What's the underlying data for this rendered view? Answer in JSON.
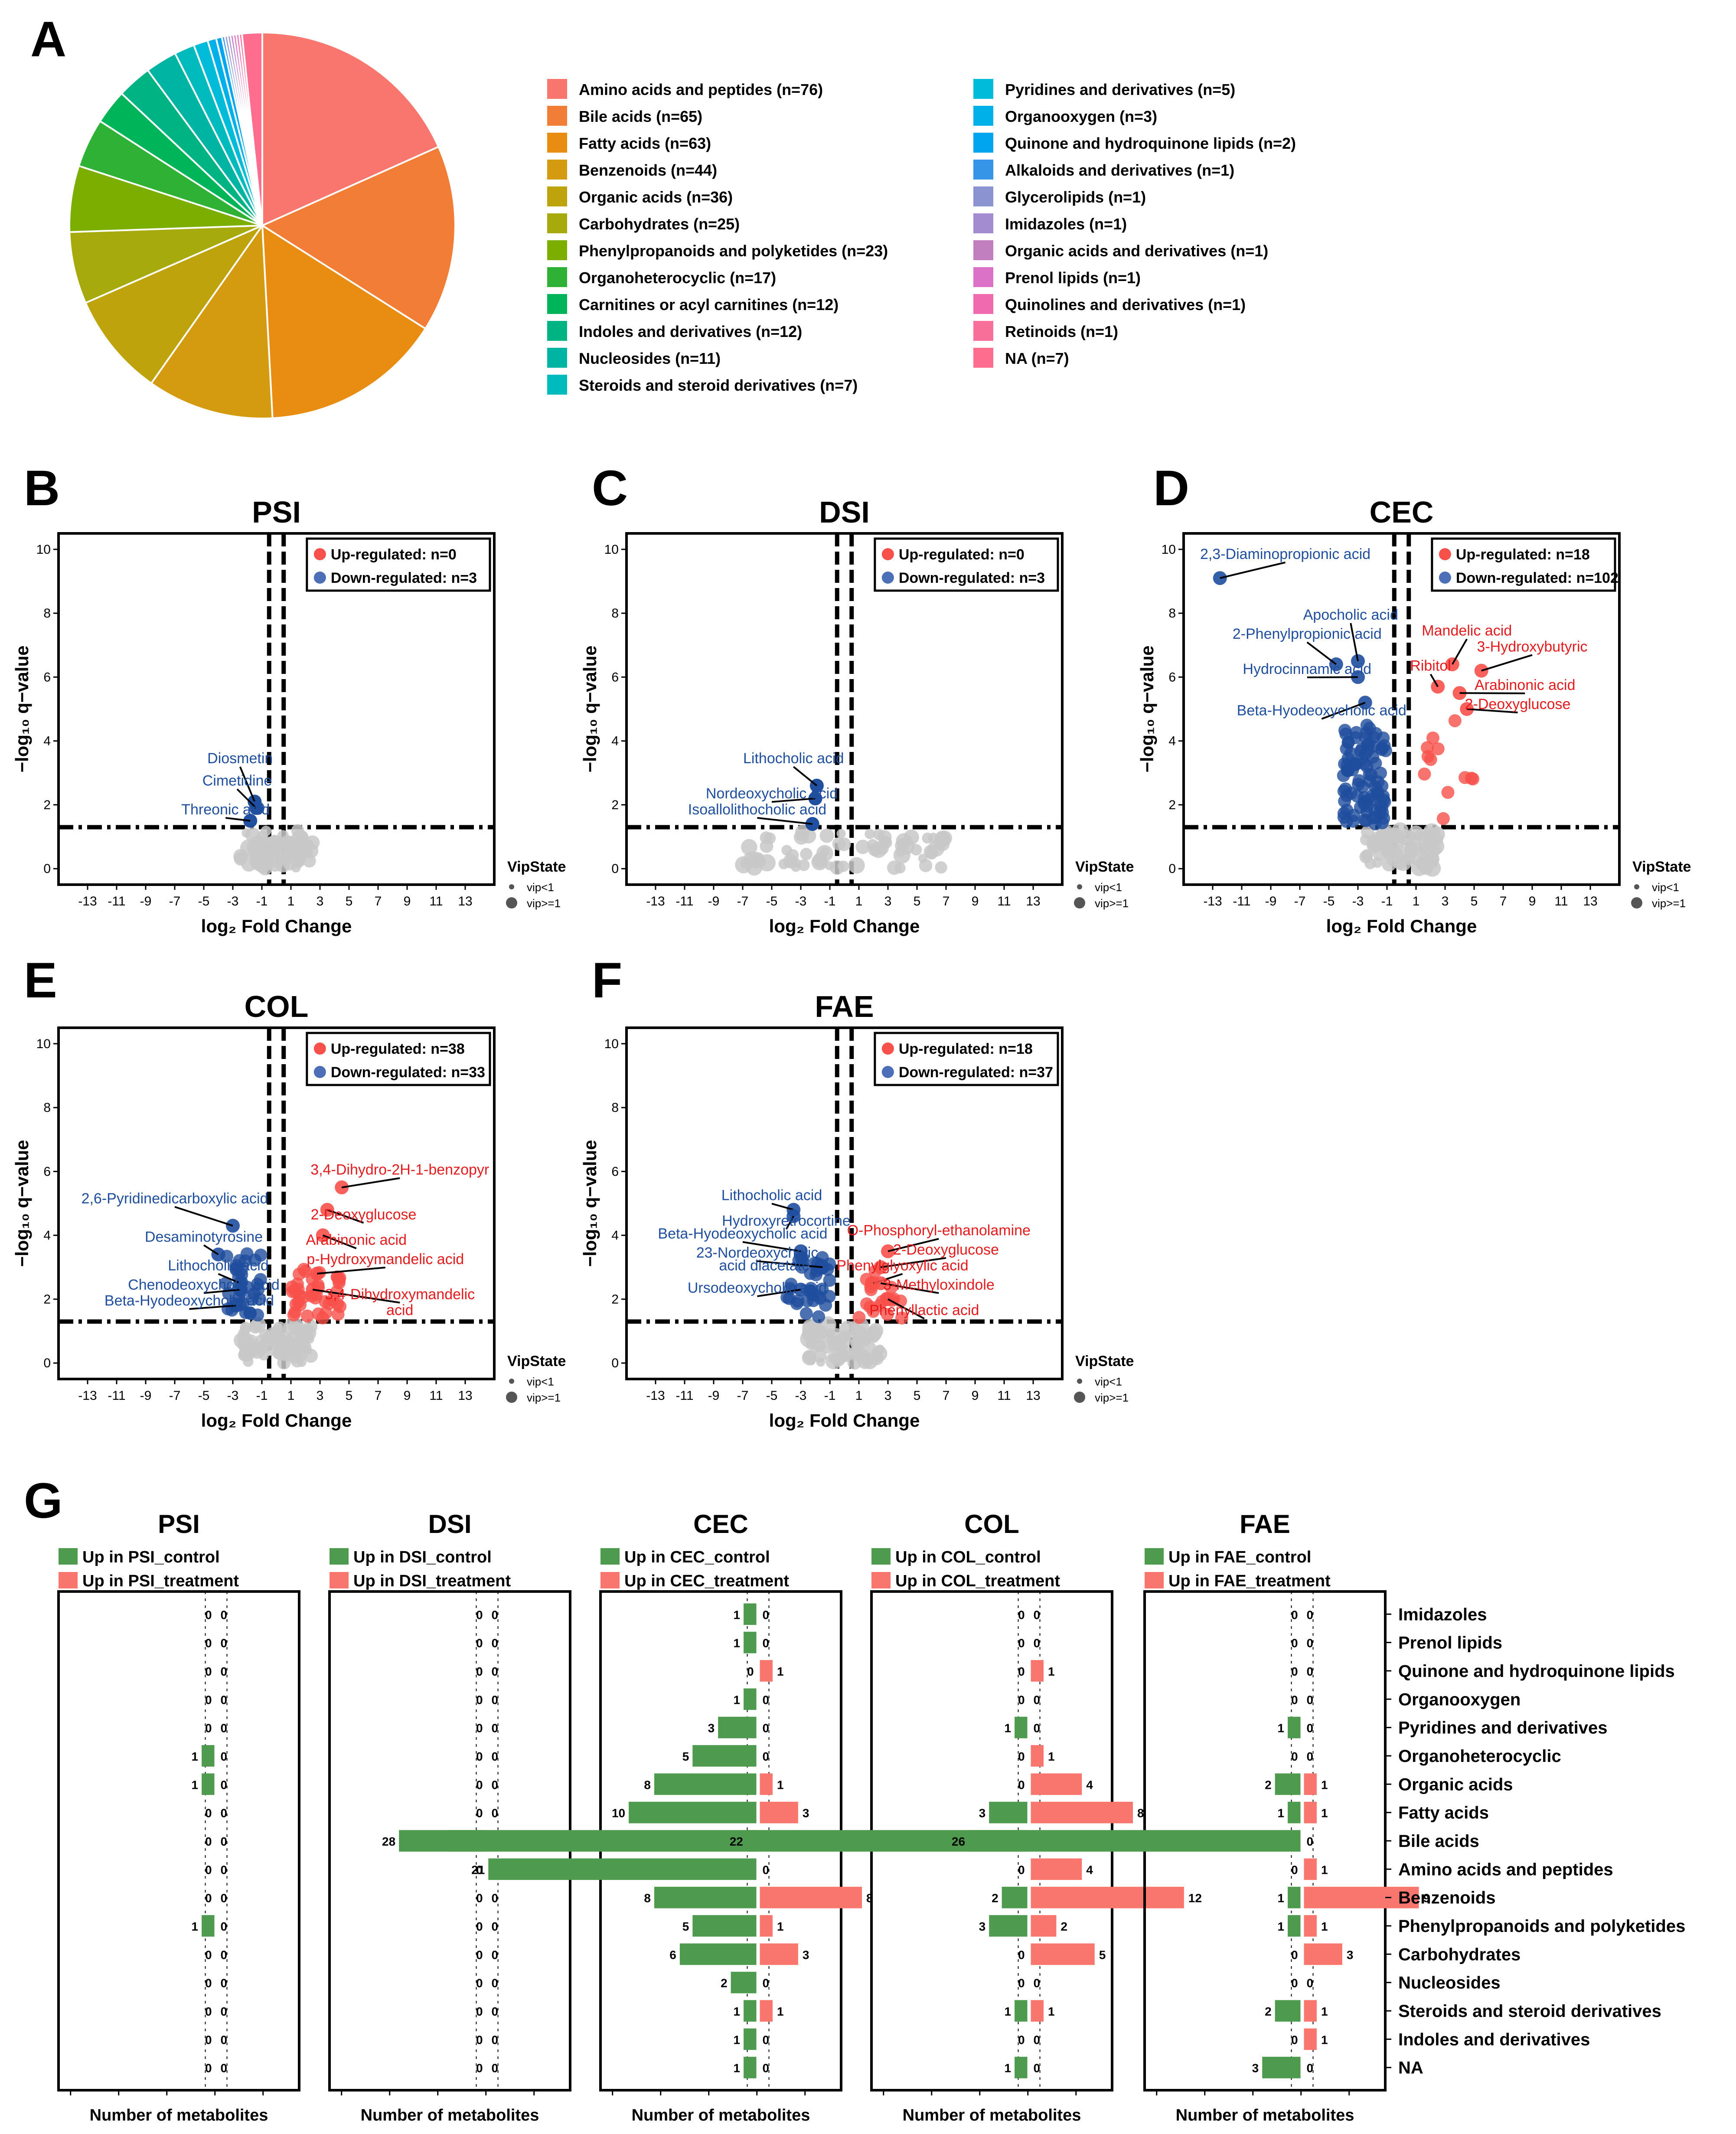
{
  "figure": {
    "panel_letters": [
      "A",
      "B",
      "C",
      "D",
      "E",
      "F",
      "G"
    ]
  },
  "chart_data": [
    {
      "id": "A",
      "type": "pie",
      "title": "",
      "slices": [
        {
          "label": "Amino acids and peptides (n=76)",
          "value": 76,
          "color": "#F8766D"
        },
        {
          "label": "Bile acids (n=65)",
          "value": 65,
          "color": "#F27D36"
        },
        {
          "label": "Fatty acids (n=63)",
          "value": 63,
          "color": "#E88D12"
        },
        {
          "label": "Benzenoids (n=44)",
          "value": 44,
          "color": "#D49B10"
        },
        {
          "label": "Organic acids (n=36)",
          "value": 36,
          "color": "#BFA30C"
        },
        {
          "label": "Carbohydrates (n=25)",
          "value": 25,
          "color": "#A6AA0C"
        },
        {
          "label": "Phenylpropanoids and polyketides (n=23)",
          "value": 23,
          "color": "#7CAE00"
        },
        {
          "label": "Organoheterocyclic (n=17)",
          "value": 17,
          "color": "#2EB134"
        },
        {
          "label": "Carnitines or acyl carnitines (n=12)",
          "value": 12,
          "color": "#00B45A"
        },
        {
          "label": "Indoles and derivatives (n=12)",
          "value": 12,
          "color": "#00B383"
        },
        {
          "label": "Nucleosides (n=11)",
          "value": 11,
          "color": "#00B4A3"
        },
        {
          "label": "Steroids and steroid derivatives (n=7)",
          "value": 7,
          "color": "#00BBBD"
        },
        {
          "label": "Pyridines and derivatives (n=5)",
          "value": 5,
          "color": "#00BCD8"
        },
        {
          "label": "Organooxygen (n=3)",
          "value": 3,
          "color": "#00B0E8"
        },
        {
          "label": "Quinone and hydroquinone lipids (n=2)",
          "value": 2,
          "color": "#00A5F0"
        },
        {
          "label": "Alkaloids and derivatives (n=1)",
          "value": 1,
          "color": "#3795E8"
        },
        {
          "label": "Glycerolipids (n=1)",
          "value": 1,
          "color": "#8B93D0"
        },
        {
          "label": "Imidazoles (n=1)",
          "value": 1,
          "color": "#A38CD0"
        },
        {
          "label": "Organic acids and derivatives (n=1)",
          "value": 1,
          "color": "#C27FC0"
        },
        {
          "label": "Prenol lipids (n=1)",
          "value": 1,
          "color": "#DB72C8"
        },
        {
          "label": "Quinolines and derivatives (n=1)",
          "value": 1,
          "color": "#F06AB0"
        },
        {
          "label": "Retinoids (n=1)",
          "value": 1,
          "color": "#F8709A"
        },
        {
          "label": "NA (n=7)",
          "value": 7,
          "color": "#FF6D8E"
        }
      ]
    },
    {
      "id": "volcano",
      "type": "scatter",
      "xlabel": "log₂ Fold Change",
      "ylabel": "−log₁₀ q−value",
      "xlim": [
        -15,
        15
      ],
      "ylim": [
        -0.5,
        10.5
      ],
      "xticks": [
        -13,
        -11,
        -9,
        -7,
        -5,
        -3,
        -1,
        1,
        3,
        5,
        7,
        9,
        11,
        13
      ],
      "yticks": [
        0,
        2,
        4,
        6,
        8,
        10
      ],
      "vline": [
        -0.5,
        0.5
      ],
      "hline": 1.3,
      "vip_legend": {
        "title": "VipState",
        "items": [
          "vip<1",
          "vip>=1"
        ]
      },
      "colors": {
        "up": "#F8504A",
        "down": "#1F4E9E",
        "ns": "#C8C8C8",
        "up_label": "#E41A1C",
        "down_label": "#1F4E9E"
      },
      "panels": [
        {
          "id": "B",
          "title": "PSI",
          "legend_up": "Up-regulated: n=0",
          "legend_down": "Down-regulated: n=3",
          "labels": [
            {
              "text": "Diosmetin",
              "x": -2.5,
              "y": 3.3,
              "color": "down",
              "px": -1.5,
              "py": 2.1
            },
            {
              "text": "Cimetidine",
              "x": -2.7,
              "y": 2.6,
              "color": "down",
              "px": -1.4,
              "py": 1.9
            },
            {
              "text": "Threonic acid",
              "x": -3.5,
              "y": 1.7,
              "color": "down",
              "px": -1.8,
              "py": 1.5
            }
          ],
          "down_points": [
            [
              -1.5,
              2.1
            ],
            [
              -1.3,
              1.9
            ],
            [
              -1.8,
              1.5
            ]
          ],
          "up_points": []
        },
        {
          "id": "C",
          "title": "DSI",
          "legend_up": "Up-regulated: n=0",
          "legend_down": "Down-regulated: n=3",
          "labels": [
            {
              "text": "Lithocholic acid",
              "x": -3.5,
              "y": 3.3,
              "color": "down",
              "px": -1.9,
              "py": 2.6
            },
            {
              "text": "Nordeoxycholic acid",
              "x": -5.0,
              "y": 2.2,
              "color": "down",
              "px": -2.0,
              "py": 2.2
            },
            {
              "text": "Isoallolithocholic acid",
              "x": -6.0,
              "y": 1.7,
              "color": "down",
              "px": -2.2,
              "py": 1.4
            }
          ],
          "down_points": [
            [
              -1.9,
              2.6
            ],
            [
              -2.0,
              2.2
            ],
            [
              -2.2,
              1.4
            ]
          ],
          "up_points": []
        },
        {
          "id": "D",
          "title": "CEC",
          "legend_up": "Up-regulated: n=18",
          "legend_down": "Down-regulated: n=102",
          "labels": [
            {
              "text": "2,3-Diaminopropionic acid",
              "x": -8.0,
              "y": 9.7,
              "color": "down",
              "px": -12.5,
              "py": 9.1
            },
            {
              "text": "Apocholic acid",
              "x": -3.5,
              "y": 7.8,
              "color": "down",
              "px": -3.0,
              "py": 6.5
            },
            {
              "text": "2-Phenylpropionic acid",
              "x": -6.5,
              "y": 7.2,
              "color": "down",
              "px": -4.5,
              "py": 6.4
            },
            {
              "text": "Hydrocinnamic acid",
              "x": -6.5,
              "y": 6.1,
              "color": "down",
              "px": -3.0,
              "py": 6.0
            },
            {
              "text": "Beta-Hyodeoxycholic acid",
              "x": -5.5,
              "y": 4.8,
              "color": "down",
              "px": -2.5,
              "py": 5.2
            },
            {
              "text": "Mandelic acid",
              "x": 4.5,
              "y": 7.3,
              "color": "up",
              "px": 3.5,
              "py": 6.4
            },
            {
              "text": "3-Hydroxybutyric",
              "x": 9.0,
              "y": 6.8,
              "color": "up",
              "px": 5.5,
              "py": 6.2
            },
            {
              "text": "Ribitol",
              "x": 2.0,
              "y": 6.2,
              "color": "up",
              "px": 2.5,
              "py": 5.7
            },
            {
              "text": "Arabinonic acid",
              "x": 8.5,
              "y": 5.6,
              "color": "up",
              "px": 4.0,
              "py": 5.5
            },
            {
              "text": "2-Deoxyglucose",
              "x": 8.0,
              "y": 5.0,
              "color": "up",
              "px": 4.5,
              "py": 5.0
            }
          ],
          "down_points": [],
          "up_points": [],
          "dense_down": {
            "count": 90,
            "xmin": -4,
            "xmax": -1,
            "ymin": 1.4,
            "ymax": 4.6
          },
          "dense_up": {
            "count": 12,
            "xmin": 1,
            "xmax": 5,
            "ymin": 1.4,
            "ymax": 5.0
          }
        },
        {
          "id": "E",
          "title": "COL",
          "legend_up": "Up-regulated: n=38",
          "legend_down": "Down-regulated: n=33",
          "labels": [
            {
              "text": "3,4-Dihydro-2H-1-benzopyr",
              "x": 8.5,
              "y": 5.9,
              "color": "up",
              "px": 4.5,
              "py": 5.5
            },
            {
              "text": "2-Deoxyglucose",
              "x": 6.0,
              "y": 4.5,
              "color": "up",
              "px": 3.5,
              "py": 4.8
            },
            {
              "text": "Arabinonic acid",
              "x": 5.5,
              "y": 3.7,
              "color": "up",
              "px": 3.2,
              "py": 4.0
            },
            {
              "text": "p-Hydroxymandelic acid",
              "x": 7.5,
              "y": 3.1,
              "color": "up",
              "px": 2.8,
              "py": 2.8
            },
            {
              "text": "3,4-Dihydroxymandelic",
              "x": 8.5,
              "y": 2.0,
              "color": "up",
              "px": 2.5,
              "py": 2.3
            },
            {
              "text": "acid",
              "x": 8.5,
              "y": 1.5,
              "color": "up",
              "px": null,
              "py": null
            },
            {
              "text": "2,6-Pyridinedicarboxylic acid",
              "x": -7.0,
              "y": 5.0,
              "color": "down",
              "px": -3.0,
              "py": 4.3
            },
            {
              "text": "Desaminotyrosine",
              "x": -5.0,
              "y": 3.8,
              "color": "down",
              "px": -4.0,
              "py": 3.4
            },
            {
              "text": "Lithocholic acid",
              "x": -4.0,
              "y": 2.9,
              "color": "down",
              "px": -2.5,
              "py": 2.5
            },
            {
              "text": "Chenodeoxycholic acid",
              "x": -5.0,
              "y": 2.3,
              "color": "down",
              "px": -2.5,
              "py": 2.3
            },
            {
              "text": "Beta-Hyodeoxycholic acid",
              "x": -6.0,
              "y": 1.8,
              "color": "down",
              "px": -2.8,
              "py": 1.8
            }
          ],
          "down_points": [],
          "up_points": [],
          "dense_down": {
            "count": 33,
            "xmin": -3.5,
            "xmax": -1,
            "ymin": 1.4,
            "ymax": 3.5
          },
          "dense_up": {
            "count": 38,
            "xmin": 1,
            "xmax": 4.5,
            "ymin": 1.4,
            "ymax": 3.0
          }
        },
        {
          "id": "F",
          "title": "FAE",
          "legend_up": "Up-regulated: n=18",
          "legend_down": "Down-regulated: n=37",
          "labels": [
            {
              "text": "Lithocholic acid",
              "x": -5.0,
              "y": 5.1,
              "color": "down",
              "px": -3.5,
              "py": 4.8
            },
            {
              "text": "Hydroxyretrocortine",
              "x": -4.0,
              "y": 4.3,
              "color": "down",
              "px": -3.5,
              "py": 4.6
            },
            {
              "text": "Beta-Hyodeoxycholic acid",
              "x": -7.0,
              "y": 3.9,
              "color": "down",
              "px": -3.0,
              "py": 3.5
            },
            {
              "text": "23-Nordeoxycholic",
              "x": -6.0,
              "y": 3.3,
              "color": "down",
              "px": -1.5,
              "py": 3.0
            },
            {
              "text": "acid diacetate",
              "x": -5.5,
              "y": 2.9,
              "color": "down",
              "px": null,
              "py": null
            },
            {
              "text": "Ursodeoxycholic acid",
              "x": -6.0,
              "y": 2.2,
              "color": "down",
              "px": -3.0,
              "py": 2.3
            },
            {
              "text": "O-Phosphoryl-ethanolamine",
              "x": 6.5,
              "y": 4.0,
              "color": "up",
              "px": 3.0,
              "py": 3.5
            },
            {
              "text": "2-Deoxyglucose",
              "x": 7.0,
              "y": 3.4,
              "color": "up",
              "px": 2.5,
              "py": 3.0
            },
            {
              "text": "Phenylglyoxylic acid",
              "x": 4.0,
              "y": 2.9,
              "color": "up",
              "px": 2.0,
              "py": 2.5
            },
            {
              "text": "3-Methyloxindole",
              "x": 6.5,
              "y": 2.3,
              "color": "up",
              "px": 2.5,
              "py": 2.5
            },
            {
              "text": "Phenyllactic acid",
              "x": 5.5,
              "y": 1.5,
              "color": "up",
              "px": 3.0,
              "py": 2.0
            }
          ],
          "down_points": [],
          "up_points": [],
          "dense_down": {
            "count": 37,
            "xmin": -4,
            "xmax": -1,
            "ymin": 1.4,
            "ymax": 3.5
          },
          "dense_up": {
            "count": 18,
            "xmin": 1,
            "xmax": 4,
            "ymin": 1.4,
            "ymax": 3.0
          }
        }
      ]
    },
    {
      "id": "G",
      "type": "bar",
      "orientation": "horizontal-diverging",
      "xlabel": "Number of metabolites",
      "categories": [
        "Imidazoles",
        "Prenol lipids",
        "Quinone and hydroquinone lipids",
        "Organooxygen",
        "Pyridines and derivatives",
        "Organoheterocyclic",
        "Organic acids",
        "Fatty acids",
        "Bile acids",
        "Amino acids and peptides",
        "Benzenoids",
        "Phenylpropanoids and polyketides",
        "Carbohydrates",
        "Nucleosides",
        "Steroids and steroid derivatives",
        "Indoles and derivatives",
        "NA"
      ],
      "colors": {
        "control": "#4E9A4E",
        "treatment": "#F8766D"
      },
      "panels": [
        {
          "title": "PSI",
          "legend_control": "Up in PSI_control",
          "legend_treatment": "Up in PSI_treatment",
          "control": [
            0,
            0,
            0,
            0,
            0,
            1,
            1,
            0,
            0,
            0,
            0,
            1,
            0,
            0,
            0,
            0,
            0
          ],
          "treatment": [
            0,
            0,
            0,
            0,
            0,
            0,
            0,
            0,
            0,
            0,
            0,
            0,
            0,
            0,
            0,
            0,
            0
          ]
        },
        {
          "title": "DSI",
          "legend_control": "Up in DSI_control",
          "legend_treatment": "Up in DSI_treatment",
          "control": [
            0,
            0,
            0,
            0,
            0,
            0,
            0,
            0,
            3,
            0,
            0,
            0,
            0,
            0,
            0,
            0,
            0
          ],
          "treatment": [
            0,
            0,
            0,
            0,
            0,
            0,
            0,
            0,
            0,
            0,
            0,
            0,
            0,
            0,
            0,
            0,
            0
          ]
        },
        {
          "title": "CEC",
          "legend_control": "Up in CEC_control",
          "legend_treatment": "Up in CEC_treatment",
          "control": [
            1,
            1,
            0,
            1,
            3,
            5,
            8,
            10,
            28,
            21,
            8,
            5,
            6,
            2,
            1,
            1,
            1
          ],
          "treatment": [
            0,
            0,
            1,
            0,
            0,
            0,
            1,
            3,
            0,
            0,
            8,
            1,
            3,
            0,
            1,
            0,
            0
          ]
        },
        {
          "title": "COL",
          "legend_control": "Up in COL_control",
          "legend_treatment": "Up in COL_treatment",
          "control": [
            0,
            0,
            0,
            0,
            1,
            0,
            0,
            3,
            22,
            0,
            2,
            3,
            0,
            0,
            1,
            0,
            1
          ],
          "treatment": [
            0,
            0,
            1,
            0,
            0,
            1,
            4,
            8,
            0,
            4,
            12,
            2,
            5,
            0,
            1,
            0,
            0
          ]
        },
        {
          "title": "FAE",
          "legend_control": "Up in FAE_control",
          "legend_treatment": "Up in FAE_treatment",
          "control": [
            0,
            0,
            0,
            0,
            1,
            0,
            2,
            1,
            26,
            0,
            1,
            1,
            0,
            0,
            2,
            0,
            3
          ],
          "treatment": [
            0,
            0,
            0,
            0,
            0,
            0,
            1,
            1,
            0,
            1,
            9,
            1,
            3,
            0,
            1,
            1,
            0
          ]
        }
      ]
    }
  ]
}
